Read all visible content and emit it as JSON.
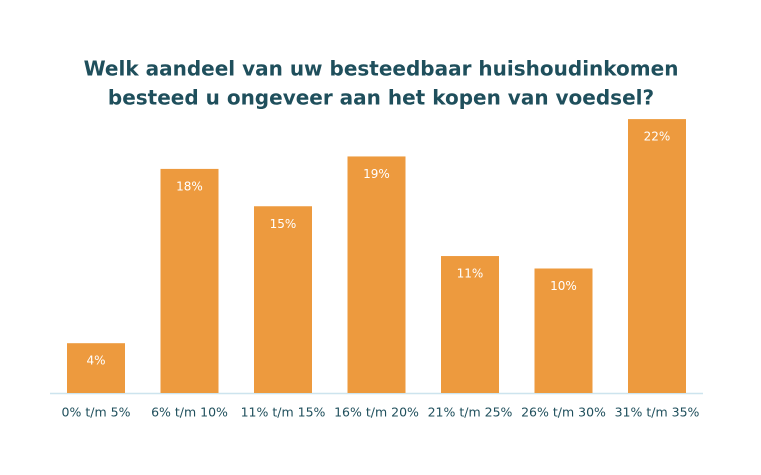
{
  "chart_data": {
    "type": "bar",
    "title": [
      "Welk aandeel van uw besteedbaar huishoudinkomen",
      "besteed u ongeveer aan het kopen van voedsel?"
    ],
    "categories": [
      "0% t/m 5%",
      "6% t/m 10%",
      "11% t/m 15%",
      "16% t/m 20%",
      "21% t/m 25%",
      "26% t/m 30%",
      "31% t/m 35%"
    ],
    "values": [
      4,
      18,
      15,
      19,
      11,
      10,
      22
    ],
    "value_labels": [
      "4%",
      "18%",
      "15%",
      "19%",
      "11%",
      "10%",
      "22%"
    ],
    "color": "#ed9a3e"
  }
}
